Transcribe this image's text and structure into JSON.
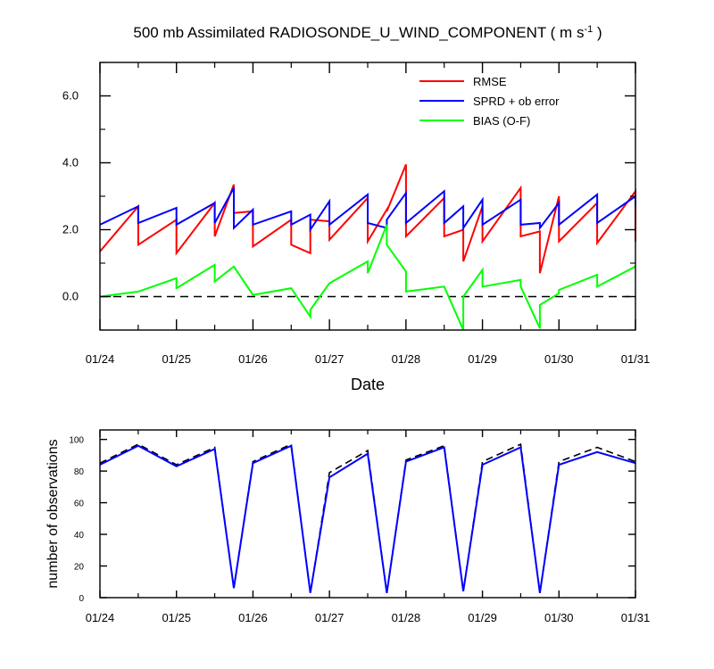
{
  "title_main": "500 mb Assimilated RADIOSONDE_U_WIND_COMPONENT ( m s",
  "title_sup": "-1",
  "title_end": " )",
  "chart_data": [
    {
      "type": "line",
      "xlabel": "Date",
      "ylim": [
        -1.0,
        7.0
      ],
      "x_tick_labels": [
        "01/24",
        "01/25",
        "01/26",
        "01/27",
        "01/28",
        "01/29",
        "01/30",
        "01/31"
      ],
      "y_ticks": [
        0,
        2,
        4,
        6
      ],
      "y_tick_labels": [
        "0.0",
        "2.0",
        "4.0",
        "6.0"
      ],
      "zero_line": {
        "y": 0,
        "style": "dashed"
      },
      "legend_position": "top-right",
      "series": [
        {
          "name": "RMSE",
          "color": "#ff0000",
          "x": [
            0,
            0.5,
            0.5,
            1.0,
            1.0,
            1.5,
            1.5,
            1.75,
            1.75,
            2.0,
            2.0,
            2.5,
            2.5,
            2.75,
            2.75,
            3.0,
            3.0,
            3.5,
            3.5,
            3.75,
            3.75,
            4.0,
            4.0,
            4.5,
            4.5,
            4.75,
            4.75,
            5.0,
            5.0,
            5.5,
            5.5,
            5.75,
            5.75,
            6.0,
            6.0,
            6.5,
            6.5,
            7.0,
            7.0
          ],
          "y": [
            1.35,
            2.7,
            1.55,
            2.3,
            1.3,
            2.8,
            1.8,
            3.35,
            2.5,
            2.55,
            1.5,
            2.3,
            1.55,
            1.3,
            2.3,
            2.25,
            1.7,
            2.95,
            1.65,
            2.6,
            2.55,
            3.95,
            1.8,
            2.95,
            1.8,
            2.0,
            1.05,
            2.7,
            1.65,
            3.25,
            1.8,
            1.95,
            0.7,
            3.0,
            1.65,
            2.8,
            1.6,
            3.15,
            1.65
          ]
        },
        {
          "name": "SPRD + ob error",
          "color": "#0000ff",
          "x": [
            0,
            0.5,
            0.5,
            1.0,
            1.0,
            1.5,
            1.5,
            1.75,
            1.75,
            2.0,
            2.0,
            2.5,
            2.5,
            2.75,
            2.75,
            3.0,
            3.0,
            3.5,
            3.5,
            3.75,
            3.75,
            4.0,
            4.0,
            4.5,
            4.5,
            4.75,
            4.75,
            5.0,
            5.0,
            5.5,
            5.5,
            5.75,
            5.75,
            6.0,
            6.0,
            6.5,
            6.5,
            7.0,
            7.0
          ],
          "y": [
            2.15,
            2.7,
            2.2,
            2.65,
            2.15,
            2.8,
            2.2,
            3.25,
            2.05,
            2.6,
            2.15,
            2.55,
            2.15,
            2.45,
            2.0,
            2.85,
            2.15,
            3.05,
            2.2,
            2.05,
            2.3,
            3.1,
            2.2,
            3.15,
            2.2,
            2.7,
            2.05,
            2.9,
            2.15,
            2.9,
            2.15,
            2.2,
            2.05,
            2.8,
            2.15,
            3.05,
            2.2,
            3.0,
            2.7
          ]
        },
        {
          "name": "BIAS (O-F)",
          "color": "#00ff00",
          "x": [
            0,
            0.5,
            1.0,
            1.0,
            1.5,
            1.5,
            1.75,
            2.0,
            2.5,
            2.75,
            2.75,
            3.0,
            3.5,
            3.5,
            3.75,
            3.75,
            4.0,
            4.0,
            4.5,
            4.75,
            4.75,
            5.0,
            5.0,
            5.5,
            5.5,
            5.75,
            5.75,
            6.0,
            6.0,
            6.5,
            6.5,
            7.0
          ],
          "y": [
            0.0,
            0.15,
            0.55,
            0.25,
            0.95,
            0.45,
            0.9,
            0.05,
            0.25,
            -0.6,
            -0.4,
            0.4,
            1.05,
            0.7,
            2.15,
            1.55,
            0.75,
            0.15,
            0.3,
            -1.0,
            0.0,
            0.8,
            0.3,
            0.5,
            0.3,
            -0.95,
            -0.25,
            0.1,
            0.2,
            0.65,
            0.3,
            0.9
          ]
        }
      ]
    },
    {
      "type": "line",
      "ylabel": "number of observations",
      "ylim": [
        0,
        106
      ],
      "x_tick_labels": [
        "01/24",
        "01/25",
        "01/26",
        "01/27",
        "01/28",
        "01/29",
        "01/30",
        "01/31"
      ],
      "y_ticks": [
        0,
        20,
        40,
        60,
        80,
        100
      ],
      "y_tick_labels": [
        "0",
        "20",
        "40",
        "60",
        "80",
        "100"
      ],
      "series": [
        {
          "style": "dashed",
          "color": "#000000",
          "x": [
            0,
            0.5,
            1.0,
            1.5,
            1.75,
            2.0,
            2.5,
            2.75,
            3.0,
            3.5,
            3.75,
            4.0,
            4.5,
            4.75,
            5.0,
            5.5,
            5.75,
            6.0,
            6.5,
            7.0
          ],
          "y": [
            85,
            97,
            84,
            95,
            6,
            86,
            97,
            3,
            79,
            93,
            3,
            87,
            96,
            4,
            86,
            97,
            3,
            86,
            95,
            86
          ]
        },
        {
          "style": "solid",
          "color": "#0000ff",
          "x": [
            0,
            0.5,
            1.0,
            1.5,
            1.75,
            2.0,
            2.5,
            2.75,
            3.0,
            3.5,
            3.75,
            4.0,
            4.5,
            4.75,
            5.0,
            5.5,
            5.75,
            6.0,
            6.5,
            7.0
          ],
          "y": [
            84,
            96,
            83,
            94,
            6,
            85,
            96,
            3,
            76,
            91,
            3,
            86,
            95,
            4,
            84,
            95,
            3,
            84,
            92,
            85
          ]
        }
      ]
    }
  ]
}
